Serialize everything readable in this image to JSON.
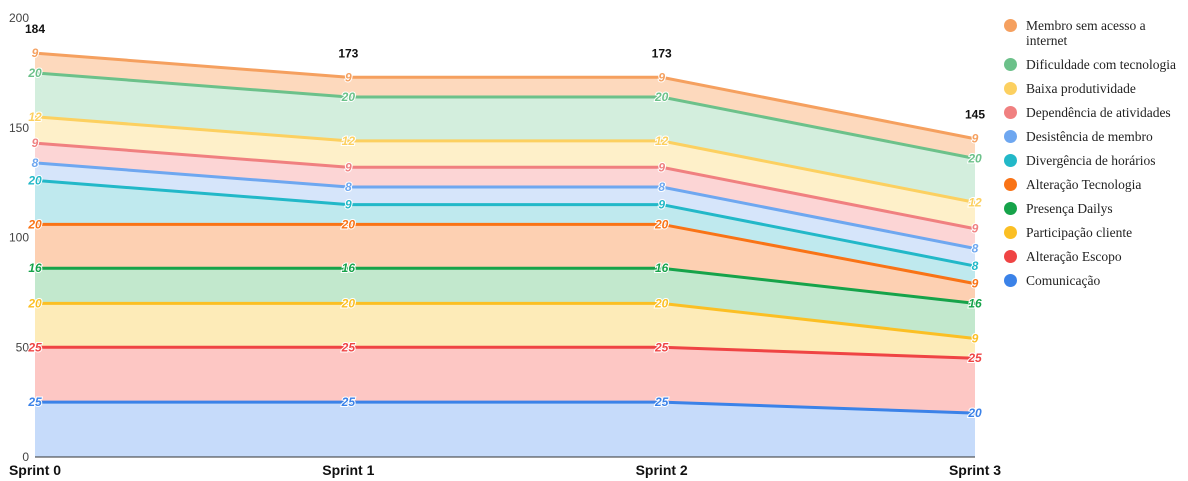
{
  "chart_data": {
    "type": "area",
    "stacked": true,
    "categories": [
      "Sprint 0",
      "Sprint 1",
      "Sprint 2",
      "Sprint 3"
    ],
    "ylim": [
      0,
      200
    ],
    "yticks": [
      0,
      50,
      100,
      150,
      200
    ],
    "totals": [
      184,
      173,
      173,
      145
    ],
    "legend_position": "right",
    "series": [
      {
        "name": "Comunicação",
        "color": "#3b82e8",
        "fill": "#c6dbfa",
        "values": [
          25,
          25,
          25,
          20
        ]
      },
      {
        "name": "Alteração Escopo",
        "color": "#ef4444",
        "fill": "#fdc7c4",
        "values": [
          25,
          25,
          25,
          25
        ]
      },
      {
        "name": "Participação cliente",
        "color": "#fbbf24",
        "fill": "#fdebb8",
        "values": [
          20,
          20,
          20,
          9
        ]
      },
      {
        "name": "Presença Dailys",
        "color": "#16a34a",
        "fill": "#c2e8cd",
        "values": [
          16,
          16,
          16,
          16
        ]
      },
      {
        "name": "Alteração Tecnologia",
        "color": "#f97316",
        "fill": "#fdd0b2",
        "values": [
          20,
          20,
          20,
          9
        ]
      },
      {
        "name": "Divergência de horários",
        "color": "#22b8c8",
        "fill": "#bfe9ee",
        "values": [
          20,
          9,
          9,
          8
        ]
      },
      {
        "name": "Desistência de membro",
        "color": "#6ea7f0",
        "fill": "#d6e5fa",
        "values": [
          8,
          8,
          8,
          8
        ]
      },
      {
        "name": "Dependência de atividades",
        "color": "#f08080",
        "fill": "#fcd5d5",
        "values": [
          9,
          9,
          9,
          9
        ]
      },
      {
        "name": "Baixa produtividade",
        "color": "#fcd060",
        "fill": "#fef0c9",
        "values": [
          12,
          12,
          12,
          12
        ]
      },
      {
        "name": "Dificuldade com tecnologia",
        "color": "#6cc18a",
        "fill": "#d3eedd",
        "values": [
          20,
          20,
          20,
          20
        ]
      },
      {
        "name": "Membro sem acesso a internet",
        "color": "#f5a05f",
        "fill": "#fdd9bd",
        "values": [
          9,
          9,
          9,
          9
        ]
      }
    ]
  }
}
